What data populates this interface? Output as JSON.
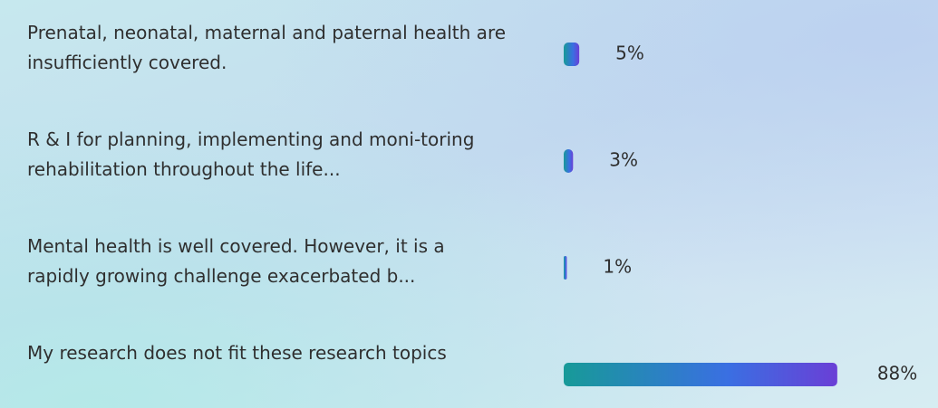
{
  "chart_data": {
    "type": "bar",
    "orientation": "horizontal",
    "categories": [
      "Prenatal, neonatal, maternal and paternal health are insufficiently covered.",
      "R & I for planning, implementing and moni-toring rehabilitation throughout the life...",
      "Mental health is well covered. However, it is a rapidly growing challenge exacerbated b...",
      "My research does not fit these research topics"
    ],
    "values": [
      5,
      3,
      1,
      88
    ],
    "value_labels": [
      "5%",
      "3%",
      "1%",
      "88%"
    ],
    "xlim": [
      0,
      100
    ]
  }
}
